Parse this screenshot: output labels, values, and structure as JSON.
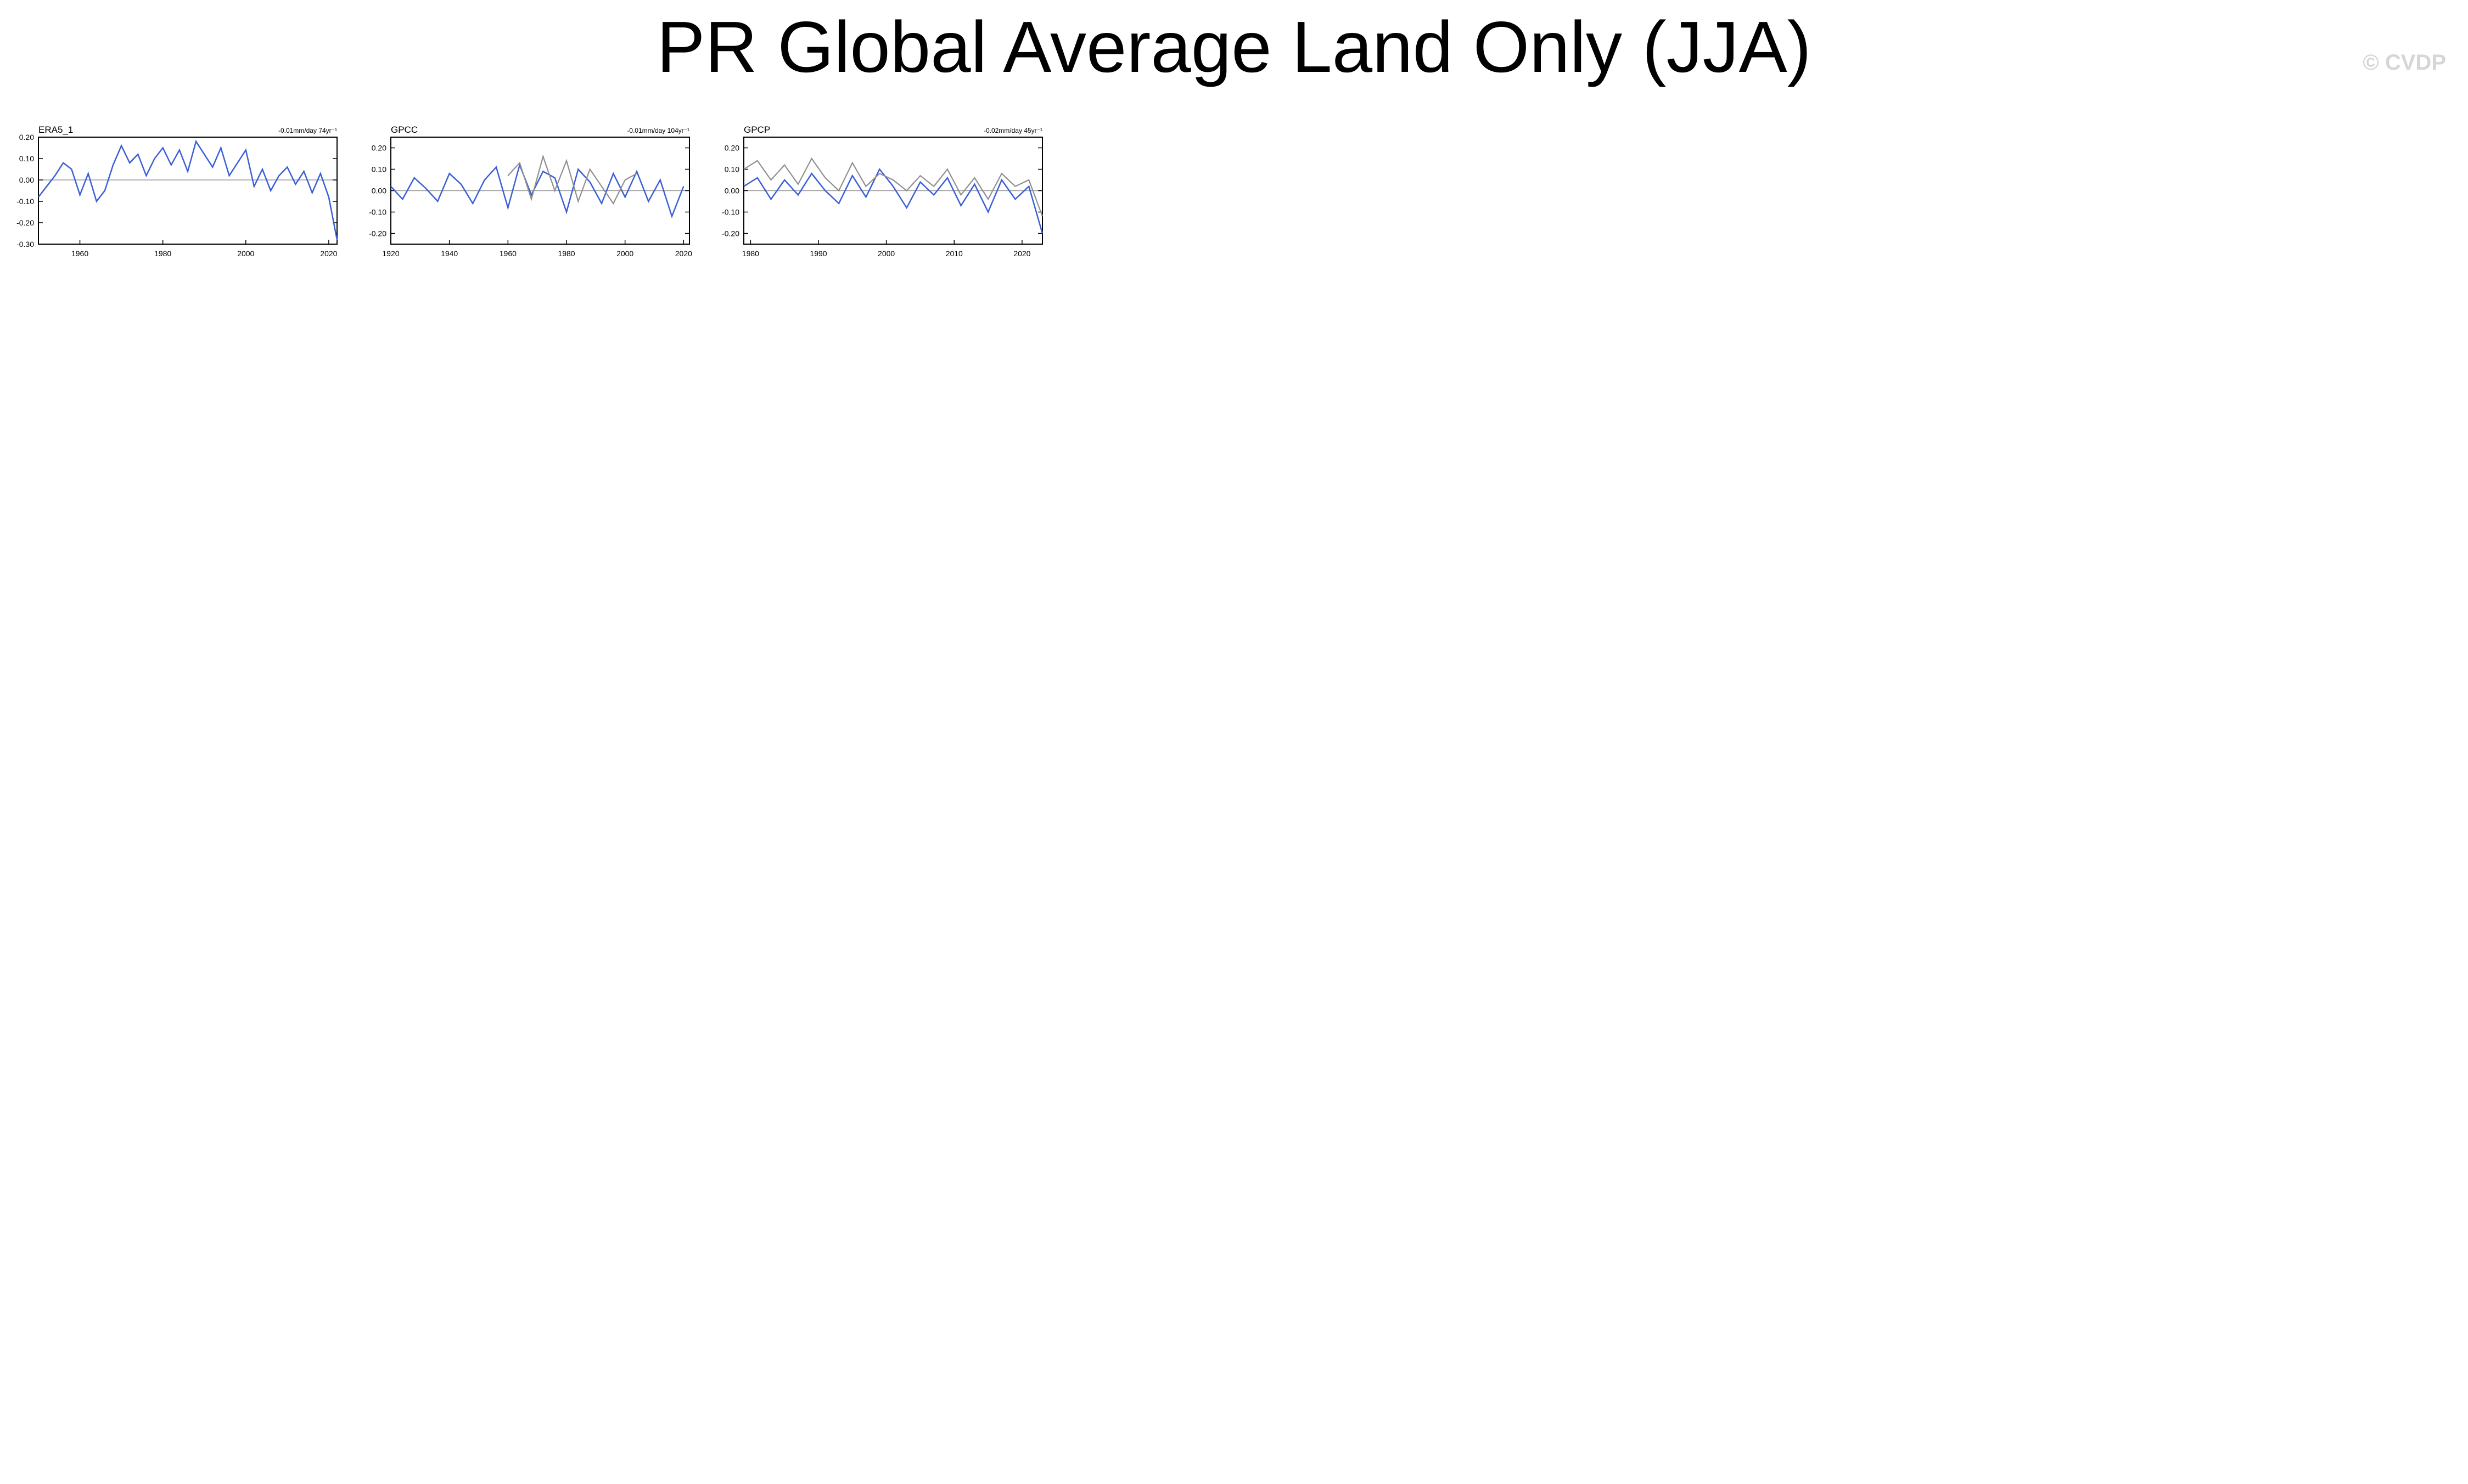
{
  "title": "PR Global Average Land Only (JJA)",
  "watermark": "© CVDP",
  "colors": {
    "primary": "#3a5fd9",
    "observed_overlay": "#8f8f8f",
    "label_obs": "#000000",
    "label_hr": "#1f6f8b",
    "label_lr": "#4d7f4d",
    "label_lens": "#c9b458"
  },
  "chart_data": [
    {
      "type": "line",
      "label": "ERA5_1",
      "trend": "-0.01mm/day 74yr⁻¹",
      "label_color": "label_obs",
      "x": [
        1950,
        1952,
        1954,
        1956,
        1958,
        1960,
        1962,
        1964,
        1966,
        1968,
        1970,
        1972,
        1974,
        1976,
        1978,
        1980,
        1982,
        1984,
        1986,
        1988,
        1990,
        1992,
        1994,
        1996,
        1998,
        2000,
        2002,
        2004,
        2006,
        2008,
        2010,
        2012,
        2014,
        2016,
        2018,
        2020,
        2022
      ],
      "series": [
        {
          "values": [
            -0.08,
            -0.03,
            0.02,
            0.08,
            0.05,
            -0.07,
            0.03,
            -0.1,
            -0.05,
            0.07,
            0.16,
            0.08,
            0.12,
            0.02,
            0.1,
            0.15,
            0.07,
            0.14,
            0.04,
            0.18,
            0.12,
            0.06,
            0.15,
            0.02,
            0.08,
            0.14,
            -0.03,
            0.05,
            -0.05,
            0.02,
            0.06,
            -0.02,
            0.04,
            -0.06,
            0.03,
            -0.08,
            -0.28
          ],
          "color": "primary"
        }
      ],
      "xlim": [
        1950,
        2022
      ],
      "ylim": [
        -0.3,
        0.2
      ],
      "xticks": [
        1960,
        1980,
        2000,
        2020
      ],
      "yticks": [
        -0.3,
        -0.2,
        -0.1,
        0.0,
        0.1,
        0.2
      ]
    },
    {
      "type": "line",
      "label": "GPCC",
      "trend": "-0.01mm/day 104yr⁻¹",
      "label_color": "label_obs",
      "x": [
        1920,
        1924,
        1928,
        1932,
        1936,
        1940,
        1944,
        1948,
        1952,
        1956,
        1960,
        1964,
        1968,
        1972,
        1976,
        1980,
        1984,
        1988,
        1992,
        1996,
        2000,
        2004,
        2008,
        2012,
        2016,
        2020
      ],
      "series": [
        {
          "values": [
            0.02,
            -0.04,
            0.06,
            0.01,
            -0.05,
            0.08,
            0.03,
            -0.06,
            0.05,
            0.11,
            -0.08,
            0.12,
            -0.02,
            0.09,
            0.06,
            -0.1,
            0.1,
            0.04,
            -0.06,
            0.08,
            -0.03,
            0.09,
            -0.05,
            0.05,
            -0.12,
            0.02
          ],
          "color": "primary"
        },
        {
          "values": [
            null,
            null,
            null,
            null,
            null,
            null,
            null,
            null,
            null,
            null,
            0.07,
            0.13,
            -0.04,
            0.16,
            0.0,
            0.14,
            -0.05,
            0.1,
            0.02,
            -0.06,
            0.05,
            0.08,
            null,
            null,
            null,
            null
          ],
          "color": "observed_overlay"
        }
      ],
      "xlim": [
        1920,
        2022
      ],
      "ylim": [
        -0.25,
        0.25
      ],
      "xticks": [
        1920,
        1940,
        1960,
        1980,
        2000,
        2020
      ],
      "yticks": [
        -0.2,
        -0.1,
        0.0,
        0.1,
        0.2
      ]
    },
    {
      "type": "line",
      "label": "GPCP",
      "trend": "-0.02mm/day 45yr⁻¹",
      "label_color": "label_obs",
      "x": [
        1979,
        1981,
        1983,
        1985,
        1987,
        1989,
        1991,
        1993,
        1995,
        1997,
        1999,
        2001,
        2003,
        2005,
        2007,
        2009,
        2011,
        2013,
        2015,
        2017,
        2019,
        2021,
        2023
      ],
      "series": [
        {
          "values": [
            0.02,
            0.06,
            -0.04,
            0.05,
            -0.02,
            0.08,
            0.0,
            -0.06,
            0.07,
            -0.03,
            0.1,
            0.02,
            -0.08,
            0.04,
            -0.02,
            0.06,
            -0.07,
            0.03,
            -0.1,
            0.05,
            -0.04,
            0.02,
            -0.2
          ],
          "color": "primary"
        },
        {
          "values": [
            0.1,
            0.14,
            0.05,
            0.12,
            0.03,
            0.15,
            0.06,
            0.0,
            0.13,
            0.02,
            0.08,
            0.05,
            0.0,
            0.07,
            0.02,
            0.1,
            -0.02,
            0.06,
            -0.04,
            0.08,
            0.02,
            0.05,
            -0.12
          ],
          "color": "observed_overlay"
        }
      ],
      "xlim": [
        1979,
        2023
      ],
      "ylim": [
        -0.25,
        0.25
      ],
      "xticks": [
        1980,
        1990,
        2000,
        2010,
        2020
      ],
      "yticks": [
        -0.2,
        -0.1,
        0.0,
        0.1,
        0.2
      ]
    }
  ]
}
